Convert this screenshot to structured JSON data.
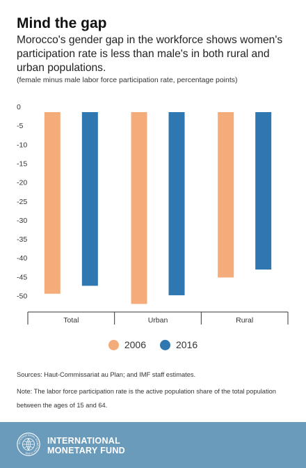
{
  "header": {
    "title": "Mind the gap",
    "subtitle": "Morocco's gender gap in the workforce shows women's participation rate is less than male's in both rural and urban populations.",
    "note": "(female minus male labor force participation rate, percentage points)"
  },
  "colors": {
    "series_2006": "#f4ac7b",
    "series_2016": "#2f77b1"
  },
  "chart_data": {
    "type": "bar",
    "title": "Mind the gap",
    "categories": [
      "Total",
      "Urban",
      "Rural"
    ],
    "series": [
      {
        "name": "2006",
        "values": [
          -49.5,
          -52.2,
          -45.2
        ]
      },
      {
        "name": "2016",
        "values": [
          -47.4,
          -49.9,
          -43.1
        ]
      }
    ],
    "y_ticks": [
      0,
      -5,
      -10,
      -15,
      -20,
      -25,
      -30,
      -35,
      -40,
      -45,
      -50
    ],
    "ylim": [
      -53.5,
      0
    ],
    "grid": false,
    "legend_position": "bottom-center"
  },
  "legend": {
    "items": [
      {
        "label": "2006"
      },
      {
        "label": "2016"
      }
    ]
  },
  "footer": {
    "sources": "Sources: Haut-Commissariat au Plan; and IMF staff estimates.",
    "note": "Note: The labor force participation rate is the active population share of the total population between the ages of 15 and 64.",
    "org_line1": "INTERNATIONAL",
    "org_line2": "MONETARY FUND",
    "seal_text": "INTERNATIONAL MONETARY FUND"
  }
}
